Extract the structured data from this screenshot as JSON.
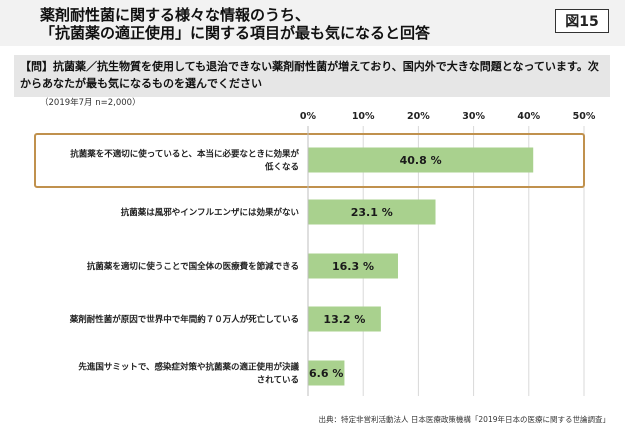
{
  "header": {
    "title": "薬剤耐性菌に関する様々な情報のうち、\n「抗菌薬の適正使用」に関する項目が最も気になると回答",
    "figure_badge": "図15"
  },
  "question": "【問】抗菌薬／抗生物質を使用しても退治できない薬剤耐性菌が増えており、国内外で大きな問題となっています。次からあなたが最も気になるものを選んでください",
  "survey_note": "（2019年7月 n=2,000）",
  "source": "出典：特定非営利活動法人 日本医療政策機構「2019年日本の医療に関する世論調査」",
  "colors": {
    "bar": "#a9d18e",
    "highlight_border": "#c0914d",
    "title_bg": "#f2f2f2",
    "question_bg": "#e6e6e6"
  },
  "chart_data": {
    "type": "bar",
    "orientation": "horizontal",
    "categories": [
      [
        "抗菌薬を不適切に使っていると、本当に必要なときに効果が",
        "低くなる"
      ],
      [
        "抗菌薬は風邪やインフルエンザには効果がない"
      ],
      [
        "抗菌薬を適切に使うことで国全体の医療費を節減できる"
      ],
      [
        "薬剤耐性菌が原因で世界中で年間約７０万人が死亡している"
      ],
      [
        "先進国サミットで、感染症対策や抗菌薬の適正使用が決議",
        "されている"
      ]
    ],
    "values": [
      40.8,
      23.1,
      16.3,
      13.2,
      6.6
    ],
    "value_labels": [
      "40.8 %",
      "23.1 %",
      "16.3 %",
      "13.2 %",
      "6.6 %"
    ],
    "xlim": [
      0,
      50
    ],
    "ticks": [
      "0%",
      "10%",
      "20%",
      "30%",
      "40%",
      "50%"
    ],
    "grid": true,
    "highlighted_index": 0
  }
}
